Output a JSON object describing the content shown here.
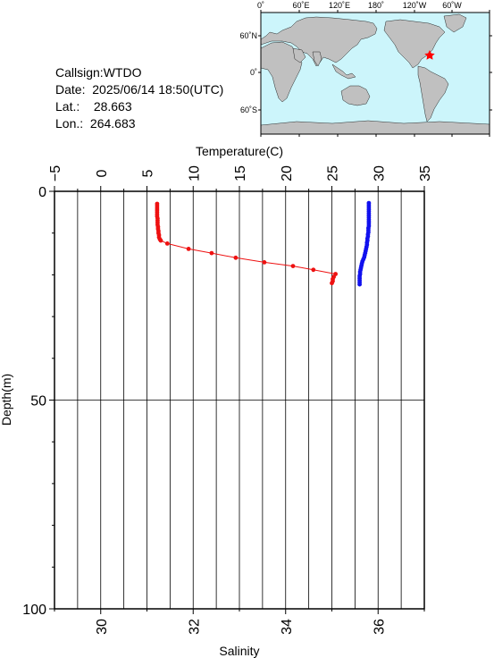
{
  "station": {
    "callsign_label": "Callsign:",
    "callsign": "WTDO",
    "date_label": "Date:",
    "date": "2025/06/14 18:50(UTC)",
    "lat_label": "Lat.:",
    "lat": "28.663",
    "lon_label": "Lon.:",
    "lon": "264.683"
  },
  "map": {
    "lon_ticks": [
      "0˚",
      "60˚E",
      "120˚E",
      "180˚",
      "120˚W",
      "60˚W"
    ],
    "lat_ticks": [
      "60˚N",
      "0˚",
      "60˚S"
    ],
    "ocean_color": "#ccf5fb",
    "land_color": "#c0c0c0",
    "marker_color": "#ff0000",
    "marker_icon": "star-icon"
  },
  "chart_data": {
    "type": "scatter",
    "top_axis_label": "Temperature(C)",
    "bottom_axis_label": "Salinity",
    "y_axis_label": "Depth(m)",
    "temperature_ticks": [
      "−5",
      "0",
      "5",
      "10",
      "15",
      "20",
      "25",
      "30",
      "35"
    ],
    "salinity_ticks": [
      "30",
      "32",
      "34",
      "36"
    ],
    "depth_ticks": [
      "0",
      "50",
      "100"
    ],
    "temperature_range": [
      -5,
      35
    ],
    "salinity_range": [
      29,
      37
    ],
    "depth_range": [
      0,
      100
    ],
    "series": [
      {
        "color": "#ee1111",
        "axis": "temperature",
        "points": [
          [
            6.1,
            3.0
          ],
          [
            6.1,
            3.5
          ],
          [
            6.1,
            4.0
          ],
          [
            6.1,
            4.5
          ],
          [
            6.1,
            5.0
          ],
          [
            6.1,
            5.5
          ],
          [
            6.1,
            6.0
          ],
          [
            6.15,
            6.5
          ],
          [
            6.15,
            7.0
          ],
          [
            6.15,
            7.5
          ],
          [
            6.15,
            8.0
          ],
          [
            6.2,
            8.5
          ],
          [
            6.2,
            9.0
          ],
          [
            6.25,
            9.5
          ],
          [
            6.25,
            10.0
          ],
          [
            6.3,
            10.5
          ],
          [
            6.3,
            11.0
          ],
          [
            6.4,
            11.5
          ],
          [
            6.5,
            11.8
          ],
          [
            7.2,
            12.5
          ],
          [
            9.5,
            13.8
          ],
          [
            12.0,
            14.8
          ],
          [
            14.6,
            15.9
          ],
          [
            17.7,
            17.0
          ],
          [
            20.8,
            17.9
          ],
          [
            23.0,
            18.8
          ],
          [
            25.4,
            19.8
          ],
          [
            25.2,
            20.5
          ],
          [
            25.1,
            21.0
          ],
          [
            25.1,
            21.5
          ],
          [
            25.0,
            22.0
          ]
        ]
      },
      {
        "color": "#1111ee",
        "axis": "salinity",
        "points": [
          [
            35.8,
            2.8
          ],
          [
            35.8,
            3.3
          ],
          [
            35.8,
            3.8
          ],
          [
            35.8,
            4.3
          ],
          [
            35.8,
            4.8
          ],
          [
            35.8,
            5.3
          ],
          [
            35.8,
            5.8
          ],
          [
            35.8,
            6.3
          ],
          [
            35.8,
            6.8
          ],
          [
            35.8,
            7.3
          ],
          [
            35.8,
            7.8
          ],
          [
            35.8,
            8.3
          ],
          [
            35.79,
            8.8
          ],
          [
            35.79,
            9.3
          ],
          [
            35.79,
            9.8
          ],
          [
            35.78,
            10.3
          ],
          [
            35.78,
            10.8
          ],
          [
            35.77,
            11.3
          ],
          [
            35.77,
            11.8
          ],
          [
            35.76,
            12.3
          ],
          [
            35.76,
            12.8
          ],
          [
            35.75,
            13.3
          ],
          [
            35.74,
            13.8
          ],
          [
            35.73,
            14.3
          ],
          [
            35.72,
            14.8
          ],
          [
            35.71,
            15.3
          ],
          [
            35.7,
            15.8
          ],
          [
            35.68,
            16.3
          ],
          [
            35.66,
            16.8
          ],
          [
            35.65,
            17.3
          ],
          [
            35.64,
            17.8
          ],
          [
            35.63,
            18.3
          ],
          [
            35.62,
            18.8
          ],
          [
            35.61,
            19.3
          ],
          [
            35.61,
            19.8
          ],
          [
            35.6,
            20.3
          ],
          [
            35.6,
            20.8
          ],
          [
            35.6,
            21.3
          ],
          [
            35.6,
            21.8
          ],
          [
            35.6,
            22.3
          ]
        ]
      }
    ]
  }
}
